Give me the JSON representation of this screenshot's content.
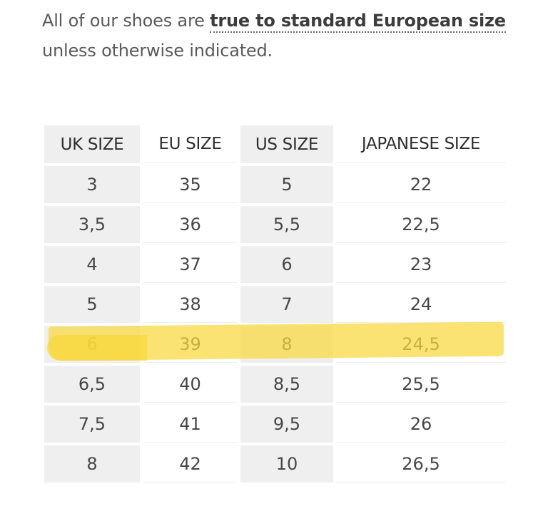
{
  "intro": {
    "prefix": "All of our shoes are ",
    "link": "true to standard European size",
    "suffix": "unless otherwise indicated."
  },
  "table": {
    "headers": [
      "UK SIZE",
      "EU SIZE",
      "US SIZE",
      "JAPANESE SIZE"
    ],
    "rows": [
      [
        "3",
        "35",
        "5",
        "22"
      ],
      [
        "3,5",
        "36",
        "5,5",
        "22,5"
      ],
      [
        "4",
        "37",
        "6",
        "23"
      ],
      [
        "5",
        "38",
        "7",
        "24"
      ],
      [
        "6",
        "39",
        "8",
        "24,5"
      ],
      [
        "6,5",
        "40",
        "8,5",
        "25,5"
      ],
      [
        "7,5",
        "41",
        "9,5",
        "26"
      ],
      [
        "8",
        "42",
        "10",
        "26,5"
      ]
    ],
    "highlighted_row": "6"
  },
  "colors": {
    "highlight": "#f8d83c",
    "shade": "#efefef",
    "text": "#474747"
  }
}
